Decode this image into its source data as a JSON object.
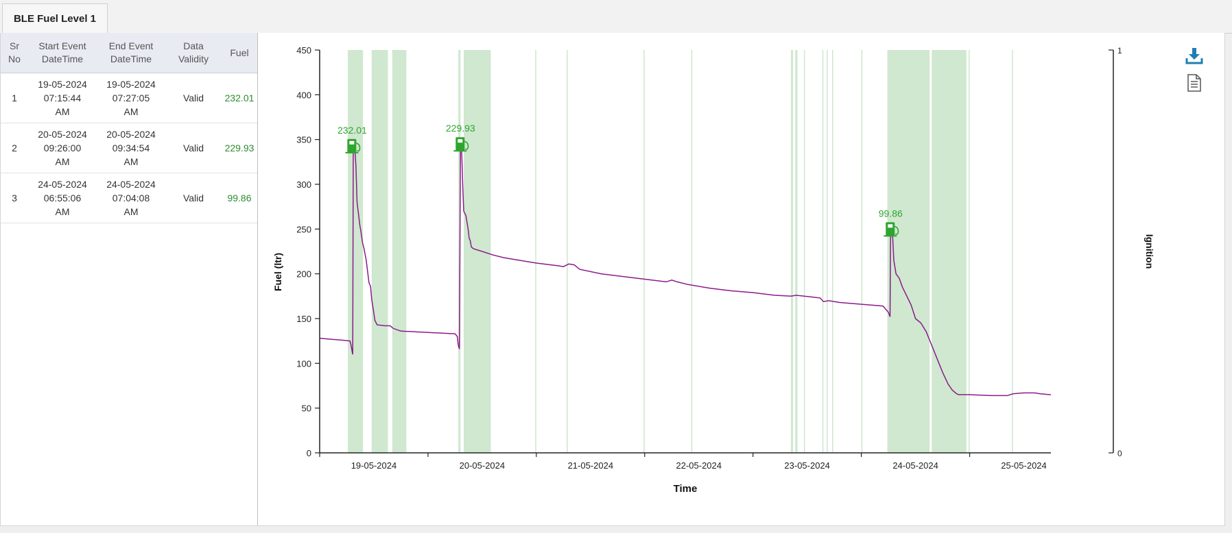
{
  "tab": {
    "label": "BLE Fuel Level 1"
  },
  "table": {
    "headers": {
      "sr": [
        "Sr",
        "No"
      ],
      "start": [
        "Start Event",
        "DateTime"
      ],
      "end": [
        "End Event",
        "DateTime"
      ],
      "validity": [
        "Data",
        "Validity"
      ],
      "fuel": "Fuel"
    },
    "rows": [
      {
        "sr": "1",
        "start": [
          "19-05-2024",
          "07:15:44",
          "AM"
        ],
        "end": [
          "19-05-2024",
          "07:27:05",
          "AM"
        ],
        "validity": "Valid",
        "fuel": "232.01"
      },
      {
        "sr": "2",
        "start": [
          "20-05-2024",
          "09:26:00",
          "AM"
        ],
        "end": [
          "20-05-2024",
          "09:34:54",
          "AM"
        ],
        "validity": "Valid",
        "fuel": "229.93"
      },
      {
        "sr": "3",
        "start": [
          "24-05-2024",
          "06:55:06",
          "AM"
        ],
        "end": [
          "24-05-2024",
          "07:04:08",
          "AM"
        ],
        "validity": "Valid",
        "fuel": "99.86"
      }
    ]
  },
  "colors": {
    "fuel_line": "#8b1a8b",
    "ignition_band": "#cfe8cf",
    "fill_marker": "#2ea52e",
    "fill_label": "#2ea52e"
  },
  "icons": {
    "download": "download-icon",
    "report": "document-icon"
  },
  "chart_data": {
    "type": "line",
    "xlabel": "Time",
    "ylabel": "Fuel (ltr)",
    "y2label": "Ignition",
    "x_range": [
      "18-05-2024",
      "25-05-2024 06:00"
    ],
    "ylim": [
      0,
      450
    ],
    "y_ticks": [
      0,
      50,
      100,
      150,
      200,
      250,
      300,
      350,
      400,
      450
    ],
    "y2lim": [
      0,
      1
    ],
    "y2_ticks": [
      0,
      1
    ],
    "x_tick_labels": [
      "19-05-2024",
      "20-05-2024",
      "21-05-2024",
      "22-05-2024",
      "23-05-2024",
      "24-05-2024",
      "25-05-2024"
    ],
    "series": [
      {
        "points": [
          [
            0.0,
            128
          ],
          [
            0.1,
            127
          ],
          [
            0.2,
            126
          ],
          [
            0.28,
            125
          ],
          [
            0.29,
            120
          ],
          [
            0.3,
            113
          ],
          [
            0.305,
            110
          ],
          [
            0.31,
            343
          ],
          [
            0.315,
            345
          ],
          [
            0.325,
            340
          ],
          [
            0.335,
            320
          ],
          [
            0.345,
            280
          ],
          [
            0.36,
            265
          ],
          [
            0.37,
            255
          ],
          [
            0.38,
            248
          ],
          [
            0.395,
            235
          ],
          [
            0.41,
            228
          ],
          [
            0.43,
            215
          ],
          [
            0.44,
            205
          ],
          [
            0.455,
            190
          ],
          [
            0.47,
            186
          ],
          [
            0.48,
            172
          ],
          [
            0.495,
            160
          ],
          [
            0.51,
            148
          ],
          [
            0.53,
            143
          ],
          [
            0.6,
            142
          ],
          [
            0.65,
            142
          ],
          [
            0.68,
            139
          ],
          [
            0.75,
            136
          ],
          [
            1.25,
            133
          ],
          [
            1.27,
            130
          ],
          [
            1.28,
            120
          ],
          [
            1.29,
            116
          ],
          [
            1.3,
            345
          ],
          [
            1.31,
            340
          ],
          [
            1.32,
            300
          ],
          [
            1.33,
            270
          ],
          [
            1.35,
            265
          ],
          [
            1.37,
            250
          ],
          [
            1.38,
            240
          ],
          [
            1.39,
            237
          ],
          [
            1.4,
            230
          ],
          [
            1.42,
            228
          ],
          [
            1.5,
            225
          ],
          [
            1.6,
            221
          ],
          [
            1.7,
            218
          ],
          [
            1.85,
            215
          ],
          [
            2.0,
            212
          ],
          [
            2.2,
            209
          ],
          [
            2.25,
            208
          ],
          [
            2.3,
            211
          ],
          [
            2.35,
            210
          ],
          [
            2.4,
            205
          ],
          [
            2.6,
            200
          ],
          [
            2.8,
            197
          ],
          [
            3.0,
            194
          ],
          [
            3.2,
            191
          ],
          [
            3.25,
            193
          ],
          [
            3.3,
            191
          ],
          [
            3.4,
            188
          ],
          [
            3.6,
            184
          ],
          [
            3.8,
            181
          ],
          [
            4.0,
            179
          ],
          [
            4.2,
            176
          ],
          [
            4.35,
            175
          ],
          [
            4.4,
            176
          ],
          [
            4.55,
            174
          ],
          [
            4.62,
            173
          ],
          [
            4.65,
            169
          ],
          [
            4.7,
            170
          ],
          [
            4.8,
            168
          ],
          [
            5.0,
            166
          ],
          [
            5.1,
            165
          ],
          [
            5.2,
            164
          ],
          [
            5.25,
            157
          ],
          [
            5.265,
            152
          ],
          [
            5.27,
            245
          ],
          [
            5.275,
            250
          ],
          [
            5.29,
            240
          ],
          [
            5.3,
            215
          ],
          [
            5.32,
            200
          ],
          [
            5.35,
            195
          ],
          [
            5.38,
            185
          ],
          [
            5.42,
            175
          ],
          [
            5.46,
            165
          ],
          [
            5.5,
            150
          ],
          [
            5.55,
            145
          ],
          [
            5.6,
            135
          ],
          [
            5.66,
            117
          ],
          [
            5.7,
            105
          ],
          [
            5.75,
            90
          ],
          [
            5.8,
            77
          ],
          [
            5.84,
            70
          ],
          [
            5.88,
            66
          ],
          [
            5.9,
            65
          ],
          [
            6.0,
            65
          ],
          [
            6.2,
            64
          ],
          [
            6.35,
            64
          ],
          [
            6.4,
            66
          ],
          [
            6.5,
            67
          ],
          [
            6.6,
            67
          ],
          [
            6.65,
            66
          ],
          [
            6.75,
            65
          ]
        ]
      }
    ],
    "ignition_on_intervals": [
      [
        0.26,
        0.4
      ],
      [
        0.48,
        0.63
      ],
      [
        0.67,
        0.8
      ],
      [
        1.28,
        1.3
      ],
      [
        1.33,
        1.58
      ],
      [
        1.99,
        2.0
      ],
      [
        2.28,
        2.29
      ],
      [
        2.99,
        3.0
      ],
      [
        3.43,
        3.44
      ],
      [
        4.35,
        4.37
      ],
      [
        4.39,
        4.41
      ],
      [
        4.47,
        4.48
      ],
      [
        4.64,
        4.65
      ],
      [
        4.68,
        4.69
      ],
      [
        4.73,
        4.74
      ],
      [
        5.0,
        5.01
      ],
      [
        5.24,
        5.63
      ],
      [
        5.65,
        5.97
      ],
      [
        5.99,
        6.0
      ],
      [
        6.39,
        6.4
      ]
    ],
    "fill_events": [
      {
        "x": 0.3,
        "y": 343,
        "label": "232.01"
      },
      {
        "x": 1.3,
        "y": 345,
        "label": "229.93"
      },
      {
        "x": 5.27,
        "y": 250,
        "label": "99.86"
      }
    ]
  }
}
